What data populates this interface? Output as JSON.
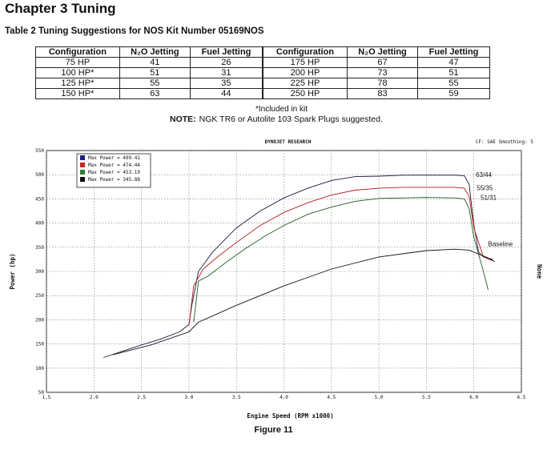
{
  "chapter_title": "Chapter 3  Tuning",
  "table_caption": "Table 2  Tuning Suggestions for NOS Kit Number 05169NOS",
  "table": {
    "headers": [
      "Configuration",
      "N₂O Jetting",
      "Fuel Jetting",
      "Configuration",
      "N₂O Jetting",
      "Fuel Jetting"
    ],
    "rows": [
      [
        "75 HP",
        "41",
        "26",
        "175 HP",
        "67",
        "47"
      ],
      [
        "100 HP*",
        "51",
        "31",
        "200 HP",
        "73",
        "51"
      ],
      [
        "125 HP*",
        "55",
        "35",
        "225 HP",
        "78",
        "55"
      ],
      [
        "150 HP*",
        "63",
        "44",
        "250 HP",
        "83",
        "59"
      ]
    ]
  },
  "footnote": "*Included in kit",
  "note": {
    "label": "NOTE:",
    "text": "NGK TR6 or Autolite 103 Spark Plugs suggested."
  },
  "figure_caption": "Figure 11",
  "chart_data": {
    "type": "line",
    "title": "DYNOJET RESEARCH",
    "corner_text": "CF: SAE  Smoothing: 5",
    "right_text": "None",
    "xlabel": "Engine Speed (RPM x1000)",
    "ylabel": "Power (hp)",
    "xlim": [
      1.5,
      6.5
    ],
    "ylim": [
      50,
      550
    ],
    "xticks": [
      "1.5",
      "2.0",
      "2.5",
      "3.0",
      "3.5",
      "4.0",
      "4.5",
      "5.0",
      "5.5",
      "6.0",
      "6.5"
    ],
    "yticks": [
      "50",
      "100",
      "150",
      "200",
      "250",
      "300",
      "350",
      "400",
      "450",
      "500",
      "550"
    ],
    "grid": true,
    "legend_position": "top-left",
    "legend": [
      {
        "text": "Max Power = 499.41",
        "color": "#1a237e"
      },
      {
        "text": "Max Power = 474.44",
        "color": "#c62828"
      },
      {
        "text": "Max Power = 453.19",
        "color": "#2e7d32"
      },
      {
        "text": "Max Power = 345.88",
        "color": "#111111"
      }
    ],
    "series": [
      {
        "name": "63/44",
        "color": "#1a1a3a",
        "points": [
          [
            2.1,
            122
          ],
          [
            2.3,
            135
          ],
          [
            2.5,
            148
          ],
          [
            2.7,
            160
          ],
          [
            2.9,
            175
          ],
          [
            3.0,
            190
          ],
          [
            3.03,
            230
          ],
          [
            3.1,
            300
          ],
          [
            3.25,
            340
          ],
          [
            3.5,
            390
          ],
          [
            3.75,
            425
          ],
          [
            4.0,
            452
          ],
          [
            4.25,
            472
          ],
          [
            4.5,
            488
          ],
          [
            4.75,
            496
          ],
          [
            5.0,
            497
          ],
          [
            5.25,
            499
          ],
          [
            5.5,
            499
          ],
          [
            5.8,
            499
          ],
          [
            5.9,
            498
          ],
          [
            5.95,
            480
          ],
          [
            6.0,
            395
          ],
          [
            6.05,
            340
          ],
          [
            6.1,
            330
          ],
          [
            6.2,
            325
          ]
        ]
      },
      {
        "name": "55/35",
        "color": "#b71c1c",
        "points": [
          [
            3.0,
            188
          ],
          [
            3.05,
            270
          ],
          [
            3.15,
            305
          ],
          [
            3.3,
            330
          ],
          [
            3.5,
            360
          ],
          [
            3.75,
            395
          ],
          [
            4.0,
            422
          ],
          [
            4.25,
            442
          ],
          [
            4.5,
            458
          ],
          [
            4.75,
            468
          ],
          [
            5.0,
            472
          ],
          [
            5.25,
            474
          ],
          [
            5.5,
            474
          ],
          [
            5.8,
            474
          ],
          [
            5.9,
            472
          ],
          [
            5.95,
            455
          ],
          [
            6.0,
            390
          ],
          [
            6.1,
            330
          ],
          [
            6.2,
            322
          ]
        ]
      },
      {
        "name": "51/31",
        "color": "#1b5e20",
        "points": [
          [
            3.05,
            195
          ],
          [
            3.1,
            280
          ],
          [
            3.2,
            290
          ],
          [
            3.4,
            320
          ],
          [
            3.6,
            348
          ],
          [
            3.8,
            373
          ],
          [
            4.0,
            395
          ],
          [
            4.25,
            418
          ],
          [
            4.5,
            433
          ],
          [
            4.75,
            445
          ],
          [
            5.0,
            451
          ],
          [
            5.25,
            452
          ],
          [
            5.5,
            453
          ],
          [
            5.8,
            452
          ],
          [
            5.9,
            450
          ],
          [
            5.95,
            430
          ],
          [
            6.0,
            370
          ],
          [
            6.1,
            300
          ],
          [
            6.15,
            262
          ]
        ]
      },
      {
        "name": "Baseline",
        "color": "#111111",
        "points": [
          [
            2.2,
            128
          ],
          [
            2.6,
            148
          ],
          [
            3.0,
            175
          ],
          [
            3.1,
            195
          ],
          [
            3.5,
            230
          ],
          [
            4.0,
            270
          ],
          [
            4.5,
            305
          ],
          [
            5.0,
            330
          ],
          [
            5.5,
            343
          ],
          [
            5.8,
            346
          ],
          [
            5.95,
            344
          ],
          [
            6.05,
            336
          ],
          [
            6.15,
            328
          ],
          [
            6.22,
            320
          ]
        ]
      }
    ]
  }
}
